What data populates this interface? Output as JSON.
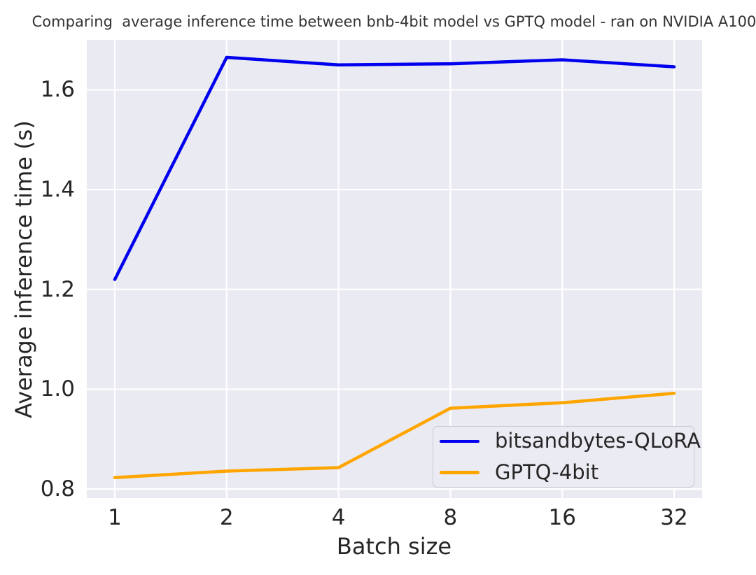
{
  "chart_data": {
    "type": "line",
    "title": "Comparing  average inference time between bnb-4bit model vs GPTQ model - ran on NVIDIA A100",
    "xlabel": "Batch size",
    "ylabel": "Average inference time (s)",
    "categories": [
      "1",
      "2",
      "4",
      "8",
      "16",
      "32"
    ],
    "series": [
      {
        "name": "bitsandbytes-QLoRA",
        "color": "#0000ee",
        "values": [
          1.22,
          1.665,
          1.65,
          1.652,
          1.66,
          1.646
        ]
      },
      {
        "name": "GPTQ-4bit",
        "color": "#ffa500",
        "values": [
          0.823,
          0.836,
          0.843,
          0.962,
          0.973,
          0.992
        ]
      }
    ],
    "ytick_labels": [
      "0.8",
      "1.0",
      "1.2",
      "1.4",
      "1.6"
    ],
    "yticks": [
      0.8,
      1.0,
      1.2,
      1.4,
      1.6
    ],
    "ylim": [
      0.782,
      1.7
    ],
    "grid": true,
    "legend_position": "lower right",
    "colors": {
      "plot_background": "#eaeaf2",
      "grid": "#ffffff",
      "text": "#262626"
    }
  }
}
